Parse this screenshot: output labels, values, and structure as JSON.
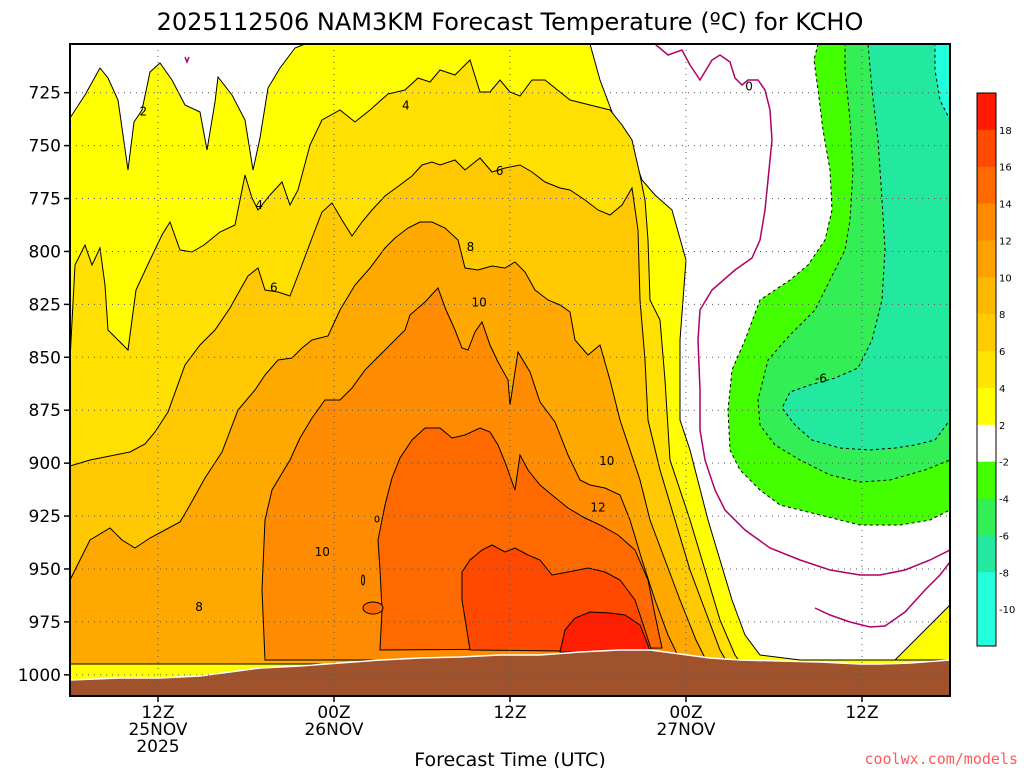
{
  "title": "2025112506 NAM3KM Forecast Temperature (ºC) for KCHO",
  "watermark": "coolwx.com/models",
  "chart_data": {
    "type": "contour",
    "title": "2025112506 NAM3KM Forecast Temperature (ºC) for KCHO",
    "xlabel": "Forecast Time (UTC)",
    "ylabel": "",
    "x_ticks": [
      {
        "line1": "12Z",
        "line2": "25NOV",
        "line3": "2025",
        "hours": 6
      },
      {
        "line1": "00Z",
        "line2": "26NOV",
        "line3": "",
        "hours": 18
      },
      {
        "line1": "12Z",
        "line2": "",
        "line3": "",
        "hours": 30
      },
      {
        "line1": "00Z",
        "line2": "27NOV",
        "line3": "",
        "hours": 42
      },
      {
        "line1": "12Z",
        "line2": "",
        "line3": "",
        "hours": 54
      }
    ],
    "xlim_hours": [
      0,
      60
    ],
    "y_ticks": [
      725,
      750,
      775,
      800,
      825,
      850,
      875,
      900,
      925,
      950,
      975,
      1000
    ],
    "ylim_hPa": [
      1010,
      702
    ],
    "grid": true,
    "colorbar": {
      "labels": [
        "18",
        "16",
        "14",
        "12",
        "10",
        "8",
        "6",
        "4",
        "2",
        "-2",
        "-4",
        "-6",
        "-8",
        "-10"
      ],
      "colors": [
        "#ff1a00",
        "#ff4a00",
        "#ff6a00",
        "#ff8a00",
        "#ffa200",
        "#ffb800",
        "#ffcc00",
        "#ffe400",
        "#ffff00",
        "#ffffff",
        "#44ff00",
        "#33ee55",
        "#22e8a0",
        "#22ffdd"
      ]
    },
    "contour_labels": [
      {
        "text": "2",
        "hours": 5.0,
        "hPa": 734
      },
      {
        "text": "4",
        "hours": 12.9,
        "hPa": 778
      },
      {
        "text": "4",
        "hours": 22.9,
        "hPa": 731
      },
      {
        "text": "6",
        "hours": 13.9,
        "hPa": 817
      },
      {
        "text": "6",
        "hours": 29.3,
        "hPa": 762
      },
      {
        "text": "8",
        "hours": 8.8,
        "hPa": 968
      },
      {
        "text": "8",
        "hours": 27.3,
        "hPa": 798
      },
      {
        "text": "10",
        "hours": 17.2,
        "hPa": 942
      },
      {
        "text": "10",
        "hours": 27.9,
        "hPa": 824
      },
      {
        "text": "10",
        "hours": 36.6,
        "hPa": 899
      },
      {
        "text": "12",
        "hours": 36.0,
        "hPa": 921
      },
      {
        "text": "0",
        "hours": 46.3,
        "hPa": 722
      },
      {
        "text": "-6",
        "hours": 51.2,
        "hPa": 860
      }
    ]
  }
}
